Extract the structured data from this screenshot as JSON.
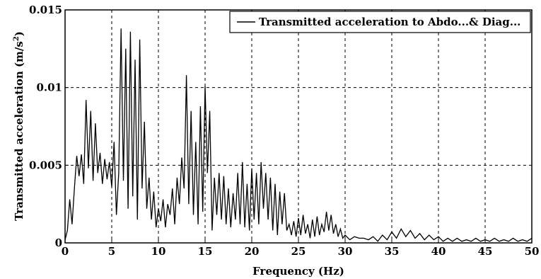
{
  "chart_data": {
    "type": "line",
    "xlabel": "Frequency (Hz)",
    "ylabel_main": "Transmitted acceleration (m/s",
    "ylabel_sup": "2",
    "ylabel_end": ")",
    "xlim": [
      0,
      50
    ],
    "ylim": [
      0,
      0.015
    ],
    "xticks": [
      0,
      5,
      10,
      15,
      20,
      25,
      30,
      35,
      40,
      45,
      50
    ],
    "yticks": [
      0,
      0.005,
      0.01,
      0.015
    ],
    "xtick_labels": [
      "0",
      "5",
      "10",
      "15",
      "20",
      "25",
      "30",
      "35",
      "40",
      "45",
      "50"
    ],
    "ytick_labels": [
      "0",
      "0.005",
      "0.01",
      "0.015"
    ],
    "grid": true,
    "legend_position": "top-right",
    "series": [
      {
        "name": "Transmitted acceleration to Abdo...& Diag...",
        "color": "#000000",
        "x": [
          0,
          0.25,
          0.5,
          0.75,
          1,
          1.25,
          1.5,
          1.75,
          2,
          2.25,
          2.5,
          2.75,
          3,
          3.25,
          3.5,
          3.75,
          4,
          4.25,
          4.5,
          4.75,
          5,
          5.25,
          5.5,
          5.75,
          6,
          6.25,
          6.5,
          6.75,
          7,
          7.25,
          7.5,
          7.75,
          8,
          8.25,
          8.5,
          8.75,
          9,
          9.25,
          9.5,
          9.75,
          10,
          10.25,
          10.5,
          10.75,
          11,
          11.25,
          11.5,
          11.75,
          12,
          12.25,
          12.5,
          12.75,
          13,
          13.25,
          13.5,
          13.75,
          14,
          14.25,
          14.5,
          14.75,
          15,
          15.25,
          15.5,
          15.75,
          16,
          16.25,
          16.5,
          16.75,
          17,
          17.25,
          17.5,
          17.75,
          18,
          18.25,
          18.5,
          18.75,
          19,
          19.25,
          19.5,
          19.75,
          20,
          20.25,
          20.5,
          20.75,
          21,
          21.25,
          21.5,
          21.75,
          22,
          22.25,
          22.5,
          22.75,
          23,
          23.25,
          23.5,
          23.75,
          24,
          24.25,
          24.5,
          24.75,
          25,
          25.25,
          25.5,
          25.75,
          26,
          26.25,
          26.5,
          26.75,
          27,
          27.25,
          27.5,
          27.75,
          28,
          28.25,
          28.5,
          28.75,
          29,
          29.25,
          29.5,
          29.75,
          30,
          30.5,
          31,
          31.5,
          32,
          32.5,
          33,
          33.5,
          34,
          34.5,
          35,
          35.5,
          36,
          36.5,
          37,
          37.5,
          38,
          38.5,
          39,
          39.5,
          40,
          40.5,
          41,
          41.5,
          42,
          42.5,
          43,
          43.5,
          44,
          44.5,
          45,
          45.5,
          46,
          46.5,
          47,
          47.5,
          48,
          48.5,
          49,
          49.5,
          50
        ],
        "y": [
          0.0002,
          0.0008,
          0.0028,
          0.0012,
          0.0035,
          0.0056,
          0.0043,
          0.0057,
          0.0038,
          0.0092,
          0.0048,
          0.0085,
          0.004,
          0.0077,
          0.0045,
          0.0058,
          0.0038,
          0.0054,
          0.0041,
          0.0052,
          0.0036,
          0.0065,
          0.0018,
          0.0045,
          0.0138,
          0.004,
          0.0125,
          0.0022,
          0.0136,
          0.003,
          0.0118,
          0.0015,
          0.0131,
          0.0035,
          0.0078,
          0.0022,
          0.0042,
          0.0015,
          0.0033,
          0.001,
          0.0022,
          0.0014,
          0.0028,
          0.001,
          0.0025,
          0.0018,
          0.0035,
          0.0012,
          0.0042,
          0.0025,
          0.0055,
          0.0035,
          0.0108,
          0.0025,
          0.0085,
          0.0018,
          0.0065,
          0.0012,
          0.0088,
          0.002,
          0.0101,
          0.0045,
          0.0085,
          0.0008,
          0.0042,
          0.0018,
          0.0045,
          0.0015,
          0.0043,
          0.0012,
          0.0035,
          0.001,
          0.0032,
          0.0015,
          0.0045,
          0.0012,
          0.0052,
          0.001,
          0.0038,
          0.0008,
          0.0048,
          0.0015,
          0.0045,
          0.0012,
          0.0052,
          0.0022,
          0.0045,
          0.0015,
          0.0042,
          0.0008,
          0.0038,
          0.0005,
          0.0033,
          0.0012,
          0.0032,
          0.0008,
          0.0012,
          0.0005,
          0.0014,
          0.0004,
          0.0016,
          0.0005,
          0.0018,
          0.0006,
          0.0012,
          0.0003,
          0.0015,
          0.0004,
          0.0017,
          0.0005,
          0.0012,
          0.0007,
          0.002,
          0.0008,
          0.0018,
          0.0006,
          0.0012,
          0.0004,
          0.0009,
          0.0003,
          0.0005,
          0.0002,
          0.0004,
          0.0003,
          0.0003,
          0.0002,
          0.0004,
          0.0001,
          0.0005,
          0.0002,
          0.0007,
          0.0003,
          0.0009,
          0.0004,
          0.0008,
          0.0003,
          0.0006,
          0.0002,
          0.0005,
          0.0002,
          0.0004,
          0.0001,
          0.0003,
          0.0001,
          0.0003,
          0.0001,
          0.0002,
          0.0001,
          0.0003,
          0.0001,
          0.0002,
          0.0001,
          0.0003,
          0.0001,
          0.0002,
          0.0001,
          0.0003,
          0.0001,
          0.0002,
          0.0001,
          0.0003
        ]
      }
    ]
  }
}
